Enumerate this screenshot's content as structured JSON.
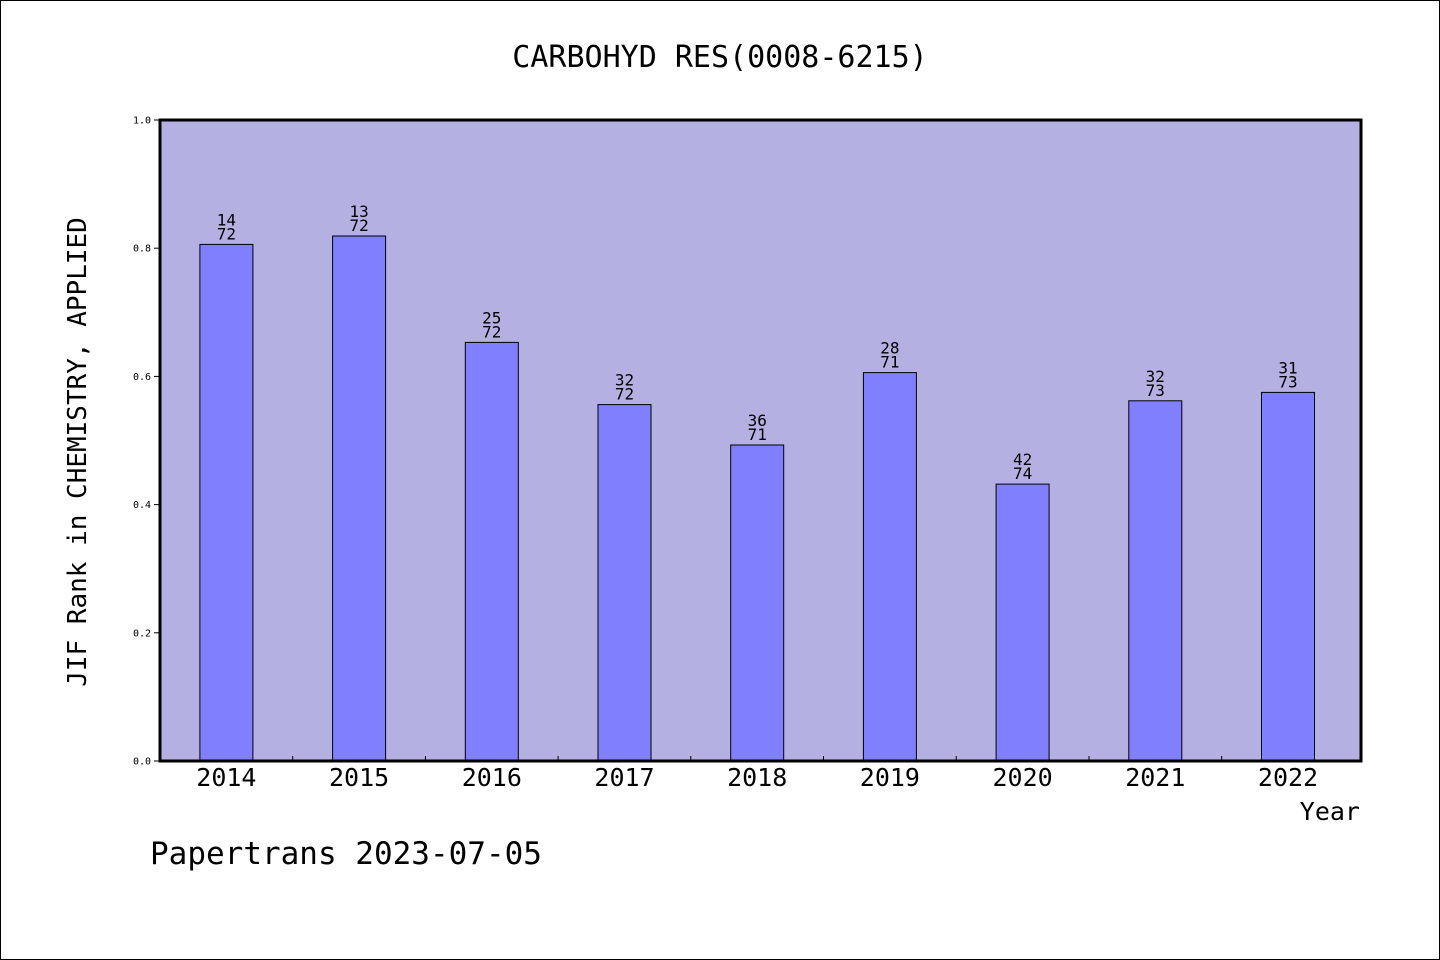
{
  "chart_data": {
    "type": "bar",
    "title": "CARBOHYD RES(0008-6215)",
    "xlabel": "Year",
    "ylabel": "JIF Rank in CHEMISTRY, APPLIED",
    "ylim": [
      0,
      1.0
    ],
    "yticks": [
      "0.0",
      "0.2",
      "0.4",
      "0.6",
      "0.8",
      "1.0"
    ],
    "categories": [
      "2014",
      "2015",
      "2016",
      "2017",
      "2018",
      "2019",
      "2020",
      "2021",
      "2022"
    ],
    "values": [
      0.806,
      0.819,
      0.653,
      0.556,
      0.493,
      0.606,
      0.432,
      0.562,
      0.575
    ],
    "rank_labels": [
      {
        "rank": "14",
        "total": "72"
      },
      {
        "rank": "13",
        "total": "72"
      },
      {
        "rank": "25",
        "total": "72"
      },
      {
        "rank": "32",
        "total": "72"
      },
      {
        "rank": "36",
        "total": "71"
      },
      {
        "rank": "28",
        "total": "71"
      },
      {
        "rank": "42",
        "total": "74"
      },
      {
        "rank": "32",
        "total": "73"
      },
      {
        "rank": "31",
        "total": "73"
      }
    ],
    "grid": false,
    "colors": {
      "plot_background": "#b5b0e2",
      "bar_fill": "#8080ff",
      "bar_stroke": "#000000"
    }
  },
  "footer": {
    "note": "Papertrans 2023-07-05"
  }
}
